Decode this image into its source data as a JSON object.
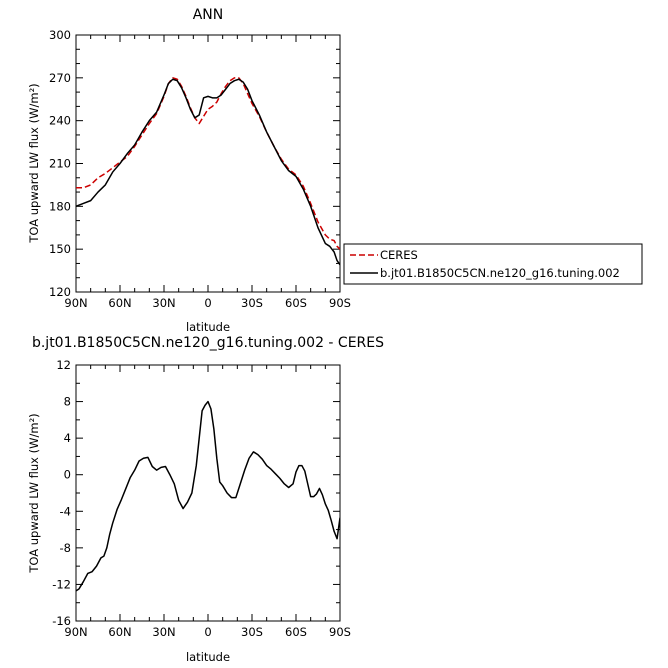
{
  "chart_data": [
    {
      "type": "line",
      "title": "ANN",
      "xlabel": "latitude",
      "ylabel": "TOA upward LW flux (W/m²)",
      "xlim": [
        -90,
        90
      ],
      "ylim": [
        120,
        300
      ],
      "xticks": [
        -90,
        -60,
        -30,
        0,
        30,
        60,
        90
      ],
      "xtick_labels": [
        "90N",
        "60N",
        "30N",
        "0",
        "30S",
        "60S",
        "90S"
      ],
      "yticks": [
        120,
        150,
        180,
        210,
        240,
        270,
        300
      ],
      "ytick_labels": [
        "120",
        "150",
        "180",
        "210",
        "240",
        "270",
        "300"
      ],
      "legend_position": "right",
      "series": [
        {
          "name": "CERES",
          "color": "#cc0000",
          "style": "dashed",
          "x": [
            -90,
            -85,
            -80,
            -75,
            -70,
            -65,
            -60,
            -55,
            -50,
            -45,
            -40,
            -35,
            -30,
            -27,
            -24,
            -21,
            -18,
            -15,
            -12,
            -9,
            -6,
            -3,
            0,
            3,
            6,
            9,
            12,
            15,
            18,
            21,
            24,
            27,
            30,
            35,
            40,
            45,
            50,
            55,
            60,
            65,
            70,
            75,
            80,
            83,
            86,
            88,
            90
          ],
          "y": [
            193,
            193,
            195,
            200,
            203,
            207,
            211,
            215,
            222,
            230,
            238,
            245,
            257,
            266,
            270,
            269,
            264,
            257,
            249,
            242,
            238,
            243,
            248,
            250,
            253,
            259,
            264,
            268,
            270,
            270,
            266,
            259,
            252,
            243,
            232,
            222,
            213,
            206,
            202,
            194,
            182,
            169,
            160,
            157,
            156,
            152,
            150
          ]
        },
        {
          "name": "b.jt01.B1850C5CN.ne120_g16.tuning.002",
          "color": "#000000",
          "style": "solid",
          "x": [
            -90,
            -85,
            -80,
            -75,
            -70,
            -65,
            -60,
            -55,
            -50,
            -45,
            -40,
            -35,
            -30,
            -27,
            -24,
            -21,
            -18,
            -15,
            -12,
            -9,
            -6,
            -3,
            0,
            3,
            6,
            9,
            12,
            15,
            18,
            21,
            24,
            27,
            30,
            35,
            40,
            45,
            50,
            55,
            60,
            65,
            70,
            75,
            80,
            83,
            86,
            88,
            90
          ],
          "y": [
            180,
            182,
            184,
            190,
            195,
            204,
            210,
            217,
            223,
            232,
            240,
            246,
            258,
            266,
            269,
            268,
            263,
            256,
            248,
            242,
            244,
            256,
            257,
            256,
            256,
            258,
            262,
            266,
            268,
            269,
            267,
            262,
            254,
            244,
            232,
            222,
            212,
            205,
            201,
            192,
            180,
            165,
            154,
            152,
            148,
            142,
            139
          ]
        }
      ]
    },
    {
      "type": "line",
      "title": "b.jt01.B1850C5CN.ne120_g16.tuning.002 - CERES",
      "xlabel": "latitude",
      "ylabel": "TOA upward LW flux (W/m²)",
      "xlim": [
        -90,
        90
      ],
      "ylim": [
        -16,
        12
      ],
      "xticks": [
        -90,
        -60,
        -30,
        0,
        30,
        60,
        90
      ],
      "xtick_labels": [
        "90N",
        "60N",
        "30N",
        "0",
        "30S",
        "60S",
        "90S"
      ],
      "yticks": [
        -16,
        -12,
        -8,
        -4,
        0,
        4,
        8,
        12
      ],
      "ytick_labels": [
        "-16",
        "-12",
        "-8",
        "-4",
        "0",
        "4",
        "8",
        "12"
      ],
      "series": [
        {
          "color": "#000000",
          "style": "solid",
          "x": [
            -90,
            -88,
            -85,
            -82,
            -79,
            -76,
            -73,
            -71,
            -69,
            -67,
            -65,
            -62,
            -59,
            -56,
            -53,
            -50,
            -47,
            -44,
            -41,
            -38,
            -35,
            -32,
            -29,
            -26,
            -23,
            -20,
            -17,
            -14,
            -11,
            -8,
            -6,
            -4,
            -2,
            0,
            2,
            4,
            6,
            8,
            10,
            13,
            16,
            19,
            22,
            25,
            28,
            31,
            34,
            37,
            40,
            43,
            46,
            49,
            52,
            55,
            58,
            60,
            62,
            64,
            66,
            68,
            70,
            72,
            74,
            76,
            78,
            80,
            82,
            84,
            86,
            88,
            90
          ],
          "y": [
            -12.7,
            -12.5,
            -11.7,
            -10.8,
            -10.6,
            -10.0,
            -9.1,
            -8.9,
            -8.0,
            -6.5,
            -5.3,
            -3.8,
            -2.7,
            -1.5,
            -0.3,
            0.5,
            1.5,
            1.8,
            1.9,
            0.9,
            0.5,
            0.8,
            0.9,
            0.0,
            -1.0,
            -2.8,
            -3.7,
            -3.0,
            -2.0,
            1.0,
            4.0,
            7.0,
            7.6,
            8.0,
            7.2,
            5.0,
            1.8,
            -0.8,
            -1.2,
            -2.0,
            -2.5,
            -2.5,
            -1.0,
            0.5,
            1.8,
            2.5,
            2.2,
            1.7,
            1.0,
            0.6,
            0.1,
            -0.4,
            -1.0,
            -1.4,
            -1.0,
            0.3,
            1.0,
            1.0,
            0.4,
            -1.0,
            -2.4,
            -2.4,
            -2.1,
            -1.5,
            -2.2,
            -3.2,
            -3.9,
            -5.0,
            -6.2,
            -7.0,
            -4.7
          ]
        }
      ]
    }
  ]
}
